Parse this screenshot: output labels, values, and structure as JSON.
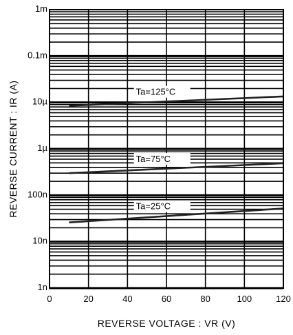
{
  "chart_data": {
    "type": "line",
    "xlabel": "REVERSE VOLTAGE : VR (V)",
    "ylabel": "REVERSE CURRENT : IR (A)",
    "xlim": [
      0,
      120
    ],
    "ylim": [
      1e-09,
      0.001
    ],
    "yscale": "log",
    "grid": true,
    "x_ticks": [
      0,
      20,
      40,
      60,
      80,
      100,
      120
    ],
    "x_tick_labels": [
      "0",
      "20",
      "40",
      "60",
      "80",
      "100",
      "120"
    ],
    "y_ticks": [
      1e-09,
      1e-08,
      1e-07,
      1e-06,
      1e-05,
      0.0001,
      0.001
    ],
    "y_tick_labels": [
      "1n",
      "10n",
      "100n",
      "1µ",
      "10µ",
      "0.1m",
      "1m"
    ],
    "series": [
      {
        "name": "Ta=125°C",
        "x": [
          10,
          120
        ],
        "y": [
          8.5e-06,
          1.35e-05
        ]
      },
      {
        "name": "Ta=75°C",
        "x": [
          10,
          120
        ],
        "y": [
          3e-07,
          4.9e-07
        ]
      },
      {
        "name": "Ta=25°C",
        "x": [
          10,
          120
        ],
        "y": [
          2.6e-08,
          5.2e-08
        ]
      }
    ]
  }
}
